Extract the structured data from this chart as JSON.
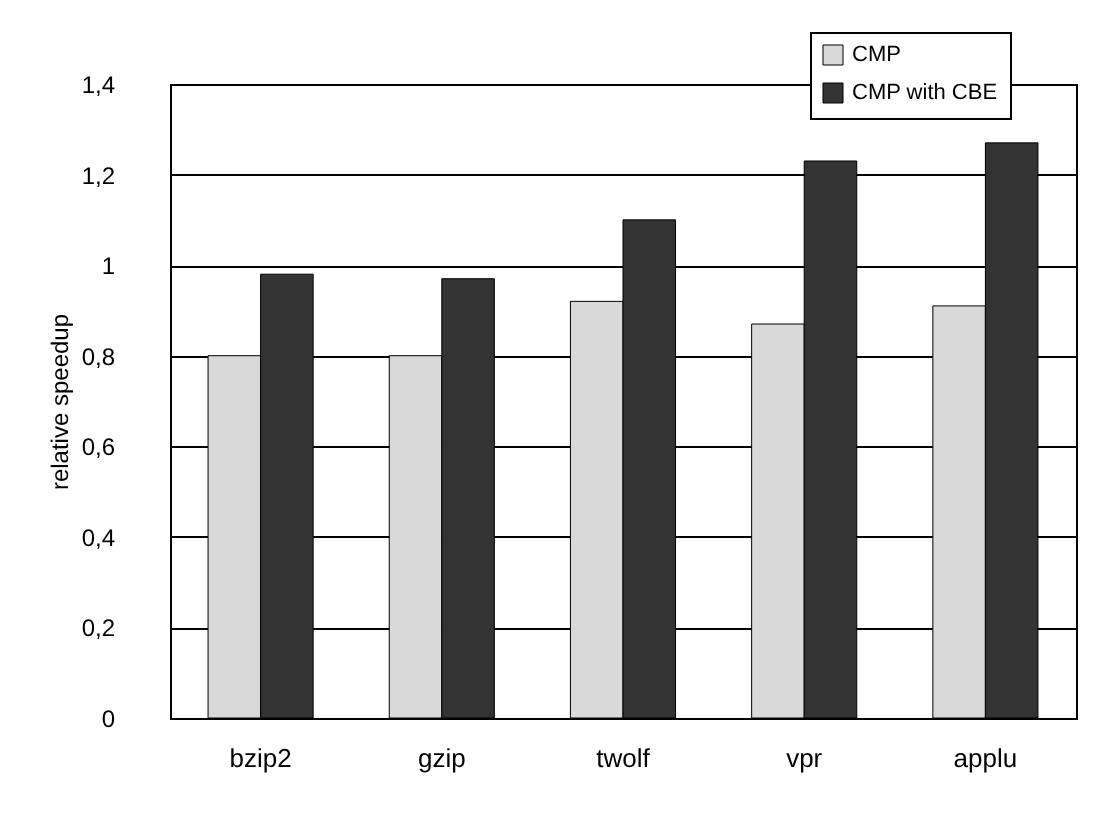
{
  "chart_data": {
    "type": "bar",
    "ylabel": "relative speedup",
    "categories": [
      "bzip2",
      "gzip",
      "twolf",
      "vpr",
      "applu"
    ],
    "series": [
      {
        "name": "CMP",
        "color": "#d9d9d9",
        "values": [
          0.8,
          0.8,
          0.92,
          0.87,
          0.91
        ]
      },
      {
        "name": "CMP with CBE",
        "color": "#333333",
        "values": [
          0.98,
          0.97,
          1.1,
          1.23,
          1.27
        ]
      }
    ],
    "ylim": [
      0,
      1.4
    ],
    "yticks": [
      {
        "value": 0,
        "label": "0"
      },
      {
        "value": 0.2,
        "label": "0,2"
      },
      {
        "value": 0.4,
        "label": "0,4"
      },
      {
        "value": 0.6,
        "label": "0,6"
      },
      {
        "value": 0.8,
        "label": "0,8"
      },
      {
        "value": 1,
        "label": "1"
      },
      {
        "value": 1.2,
        "label": "1,2"
      },
      {
        "value": 1.4,
        "label": "1,4"
      }
    ],
    "grid": "y",
    "legend": "top right"
  }
}
